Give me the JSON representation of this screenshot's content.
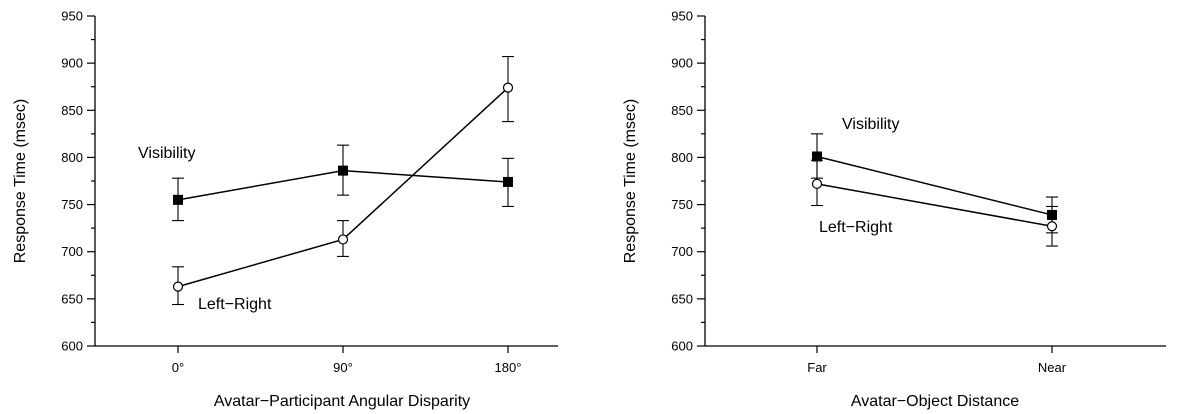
{
  "chart_data": [
    {
      "type": "line",
      "xlabel": "Avatar−Participant Angular Disparity",
      "ylabel": "Response Time (msec)",
      "categories": [
        "0°",
        "90°",
        "180°"
      ],
      "ylim": [
        600,
        950
      ],
      "yticks": [
        "600",
        "650",
        "700",
        "750",
        "800",
        "850",
        "900",
        "950"
      ],
      "grid": false,
      "series": [
        {
          "name": "Visibility",
          "marker": "filled-square",
          "values": [
            755,
            786,
            774
          ],
          "error": [
            [
              733,
              778
            ],
            [
              760,
              813
            ],
            [
              748,
              799
            ]
          ]
        },
        {
          "name": "Left−Right",
          "marker": "open-circle",
          "values": [
            663,
            713,
            874
          ],
          "error": [
            [
              644,
              684
            ],
            [
              695,
              733
            ],
            [
              838,
              907
            ]
          ]
        }
      ]
    },
    {
      "type": "line",
      "xlabel": "Avatar−Object Distance",
      "ylabel": "Response Time (msec)",
      "categories": [
        "Far",
        "Near"
      ],
      "ylim": [
        600,
        950
      ],
      "yticks": [
        "600",
        "650",
        "700",
        "750",
        "800",
        "850",
        "900",
        "950"
      ],
      "grid": false,
      "series": [
        {
          "name": "Visibility",
          "marker": "filled-square",
          "values": [
            801,
            739
          ],
          "error": [
            [
              778,
              825
            ],
            [
              720,
              758
            ]
          ]
        },
        {
          "name": "Left−Right",
          "marker": "open-circle",
          "values": [
            772,
            727
          ],
          "error": [
            [
              749,
              797
            ],
            [
              706,
              748
            ]
          ]
        }
      ]
    }
  ]
}
